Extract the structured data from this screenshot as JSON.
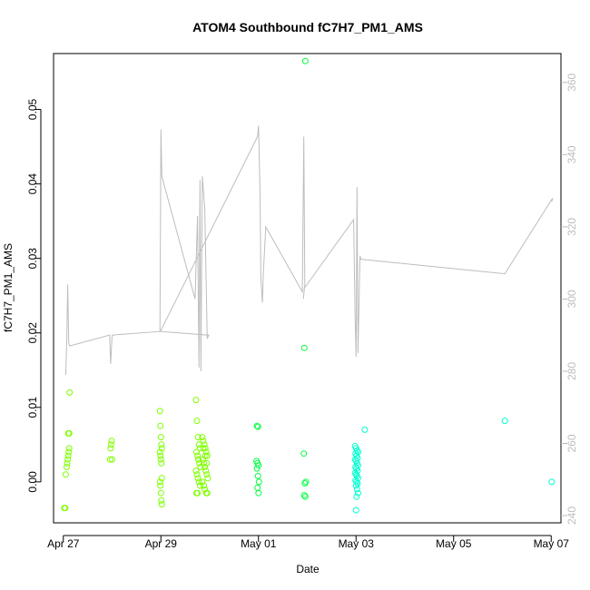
{
  "chart_data": {
    "type": "scatter",
    "title": "ATOM4 Southbound fC7H7_PM1_AMS",
    "xlabel": "Date",
    "ylabel": "fC7H7_PM1_AMS",
    "x_unit": "days",
    "xlim": [
      "Apr 27",
      "May 07"
    ],
    "x_ticks": [
      {
        "label": "Apr 27",
        "value": 0
      },
      {
        "label": "Apr 29",
        "value": 2
      },
      {
        "label": "May 01",
        "value": 4
      },
      {
        "label": "May 03",
        "value": 6
      },
      {
        "label": "May 05",
        "value": 8
      },
      {
        "label": "May 07",
        "value": 10
      }
    ],
    "ylim": [
      -0.0055,
      0.0575
    ],
    "y_ticks": [
      0.0,
      0.01,
      0.02,
      0.03,
      0.04,
      0.05
    ],
    "y_tick_labels": [
      "0.00",
      "0.01",
      "0.02",
      "0.03",
      "0.04",
      "0.05"
    ],
    "y2lim": [
      238,
      368
    ],
    "y2_ticks": [
      240,
      260,
      280,
      300,
      320,
      340,
      360
    ],
    "y2_tick_labels": [
      "240",
      "260",
      "280",
      "300",
      "320",
      "340",
      "360"
    ],
    "colors": {
      "early": "#7fff00",
      "mid": "#00ff40",
      "late": "#00ffd0",
      "line": "#bdbdbd"
    },
    "series": [
      {
        "type": "scatter",
        "y_axis": "left",
        "points": [
          [
            0.02,
            -0.0035
          ],
          [
            0.04,
            -0.0035
          ],
          [
            0.05,
            0.001
          ],
          [
            0.07,
            0.002
          ],
          [
            0.08,
            0.0025
          ],
          [
            0.09,
            0.003
          ],
          [
            0.1,
            0.0035
          ],
          [
            0.11,
            0.004
          ],
          [
            0.12,
            0.0045
          ],
          [
            0.13,
            0.012
          ],
          [
            0.1,
            0.0065
          ],
          [
            0.12,
            0.0065
          ],
          [
            0.96,
            0.003
          ],
          [
            0.97,
            0.0045
          ],
          [
            0.98,
            0.005
          ],
          [
            0.99,
            0.0055
          ],
          [
            1.0,
            0.003
          ],
          [
            1.98,
            0.0095
          ],
          [
            1.99,
            0.0075
          ],
          [
            2.0,
            0.006
          ],
          [
            2.01,
            0.005
          ],
          [
            2.02,
            0.0045
          ],
          [
            1.98,
            0.004
          ],
          [
            1.99,
            0.0035
          ],
          [
            2.0,
            0.003
          ],
          [
            2.01,
            0.0025
          ],
          [
            2.02,
            0.0005
          ],
          [
            1.98,
            0.0
          ],
          [
            1.99,
            -0.0005
          ],
          [
            2.0,
            -0.0015
          ],
          [
            2.01,
            -0.0025
          ],
          [
            2.02,
            -0.003
          ],
          [
            2.72,
            0.011
          ],
          [
            2.74,
            0.0082
          ],
          [
            2.76,
            0.006
          ],
          [
            2.78,
            0.005
          ],
          [
            2.8,
            0.0045
          ],
          [
            2.73,
            0.004
          ],
          [
            2.75,
            0.0035
          ],
          [
            2.77,
            0.003
          ],
          [
            2.79,
            0.0025
          ],
          [
            2.81,
            0.002
          ],
          [
            2.72,
            0.0015
          ],
          [
            2.74,
            0.001
          ],
          [
            2.76,
            0.0005
          ],
          [
            2.78,
            0.0
          ],
          [
            2.8,
            -0.0005
          ],
          [
            2.73,
            -0.0015
          ],
          [
            2.75,
            -0.0015
          ],
          [
            2.77,
            0.003
          ],
          [
            2.85,
            0.006
          ],
          [
            2.87,
            0.0055
          ],
          [
            2.89,
            0.005
          ],
          [
            2.91,
            0.0045
          ],
          [
            2.93,
            0.004
          ],
          [
            2.95,
            0.0035
          ],
          [
            2.86,
            0.003
          ],
          [
            2.88,
            0.0025
          ],
          [
            2.9,
            0.002
          ],
          [
            2.92,
            0.0015
          ],
          [
            2.94,
            0.001
          ],
          [
            2.96,
            0.0005
          ],
          [
            2.85,
            0.0
          ],
          [
            2.88,
            -0.0005
          ],
          [
            2.9,
            -0.001
          ],
          [
            2.93,
            -0.0015
          ],
          [
            2.95,
            -0.0015
          ],
          [
            2.87,
            0.0045
          ],
          [
            2.91,
            0.0035
          ],
          [
            2.94,
            0.0025
          ]
        ],
        "color_key": "early"
      },
      {
        "type": "scatter",
        "y_axis": "left",
        "points": [
          [
            3.97,
            0.0075
          ],
          [
            3.99,
            0.0074
          ],
          [
            3.96,
            0.0028
          ],
          [
            3.98,
            0.0025
          ],
          [
            4.0,
            0.0022
          ],
          [
            3.97,
            0.0018
          ],
          [
            3.99,
            0.0008
          ],
          [
            4.01,
            0.0
          ],
          [
            3.98,
            -0.0008
          ],
          [
            4.0,
            -0.0015
          ],
          [
            4.94,
            0.018
          ],
          [
            4.96,
            0.0565
          ],
          [
            4.93,
            0.0038
          ],
          [
            4.97,
            0.0
          ],
          [
            4.95,
            -0.0002
          ],
          [
            4.94,
            -0.0018
          ],
          [
            4.96,
            -0.002
          ]
        ],
        "color_key": "mid"
      },
      {
        "type": "scatter",
        "y_axis": "left",
        "points": [
          [
            5.98,
            0.0048
          ],
          [
            6.0,
            0.0045
          ],
          [
            6.02,
            0.0042
          ],
          [
            6.04,
            0.004
          ],
          [
            5.99,
            0.0038
          ],
          [
            6.01,
            0.0035
          ],
          [
            6.03,
            0.0032
          ],
          [
            5.98,
            0.003
          ],
          [
            6.0,
            0.0028
          ],
          [
            6.02,
            0.0025
          ],
          [
            6.04,
            0.0022
          ],
          [
            5.99,
            0.002
          ],
          [
            6.01,
            0.0018
          ],
          [
            6.03,
            0.0015
          ],
          [
            5.98,
            0.0012
          ],
          [
            6.0,
            0.001
          ],
          [
            6.02,
            0.0008
          ],
          [
            6.04,
            0.0005
          ],
          [
            5.99,
            0.0002
          ],
          [
            6.01,
            0.0
          ],
          [
            6.03,
            -0.0002
          ],
          [
            6.0,
            -0.0005
          ],
          [
            6.02,
            -0.001
          ],
          [
            6.04,
            -0.0015
          ],
          [
            6.01,
            -0.002
          ],
          [
            6.0,
            -0.0038
          ],
          [
            6.18,
            0.007
          ],
          [
            9.05,
            0.0082
          ],
          [
            10.01,
            0.0
          ]
        ],
        "color_key": "late"
      },
      {
        "type": "line",
        "y_axis": "right",
        "points": [
          [
            0.05,
            279
          ],
          [
            0.07,
            288
          ],
          [
            0.09,
            304
          ],
          [
            0.11,
            288
          ],
          [
            0.13,
            287
          ],
          [
            0.95,
            290
          ],
          [
            0.97,
            282
          ],
          [
            1.0,
            290
          ],
          [
            1.98,
            291
          ],
          [
            2.0,
            347
          ],
          [
            2.02,
            334
          ],
          [
            2.04,
            333
          ],
          [
            2.7,
            300
          ],
          [
            2.75,
            323
          ],
          [
            2.78,
            281
          ],
          [
            2.8,
            333
          ],
          [
            2.82,
            280
          ],
          [
            2.85,
            334
          ],
          [
            2.9,
            325
          ],
          [
            2.95,
            289
          ],
          [
            2.98,
            290
          ],
          [
            1.99,
            291
          ],
          [
            3.98,
            345
          ],
          [
            4.0,
            348
          ],
          [
            4.03,
            331
          ],
          [
            4.05,
            306
          ],
          [
            4.08,
            299
          ],
          [
            4.1,
            307
          ],
          [
            4.15,
            320
          ],
          [
            4.9,
            302
          ],
          [
            4.93,
            345
          ],
          [
            4.95,
            304
          ],
          [
            4.92,
            300
          ],
          [
            4.94,
            303
          ],
          [
            5.95,
            322
          ],
          [
            5.98,
            295
          ],
          [
            6.0,
            284
          ],
          [
            6.02,
            331
          ],
          [
            6.04,
            285
          ],
          [
            6.08,
            312
          ],
          [
            6.1,
            311
          ],
          [
            6.12,
            311
          ],
          [
            9.05,
            307
          ],
          [
            10.03,
            328
          ],
          [
            10.01,
            327
          ]
        ],
        "color_key": "line"
      }
    ]
  }
}
